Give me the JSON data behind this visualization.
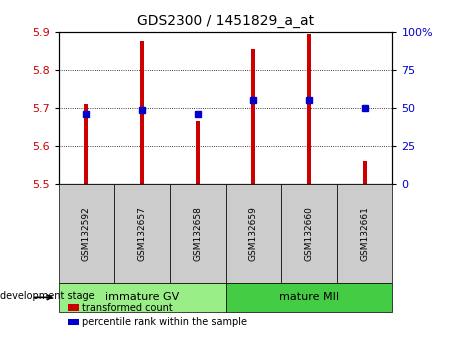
{
  "title": "GDS2300 / 1451829_a_at",
  "samples": [
    "GSM132592",
    "GSM132657",
    "GSM132658",
    "GSM132659",
    "GSM132660",
    "GSM132661"
  ],
  "bar_base": 5.5,
  "bar_tops": [
    5.71,
    5.875,
    5.665,
    5.855,
    5.895,
    5.56
  ],
  "percentile_values": [
    5.685,
    5.695,
    5.685,
    5.72,
    5.72,
    5.7
  ],
  "ylim_left": [
    5.5,
    5.9
  ],
  "ylim_right": [
    0,
    100
  ],
  "yticks_left": [
    5.5,
    5.6,
    5.7,
    5.8,
    5.9
  ],
  "yticks_right": [
    0,
    25,
    50,
    75,
    100
  ],
  "ytick_labels_right": [
    "0",
    "25",
    "50",
    "75",
    "100%"
  ],
  "bar_color": "#cc0000",
  "marker_color": "#0000cc",
  "grid_color": "#000000",
  "groups": [
    {
      "label": "immature GV",
      "indices": [
        0,
        1,
        2
      ],
      "color": "#99ee88"
    },
    {
      "label": "mature MII",
      "indices": [
        3,
        4,
        5
      ],
      "color": "#44cc44"
    }
  ],
  "dev_stage_label": "development stage",
  "legend_bar_label": "transformed count",
  "legend_marker_label": "percentile rank within the sample",
  "tick_label_color_left": "#cc0000",
  "tick_label_color_right": "#0000cc",
  "bg_plot": "#ffffff",
  "bg_label": "#cccccc"
}
